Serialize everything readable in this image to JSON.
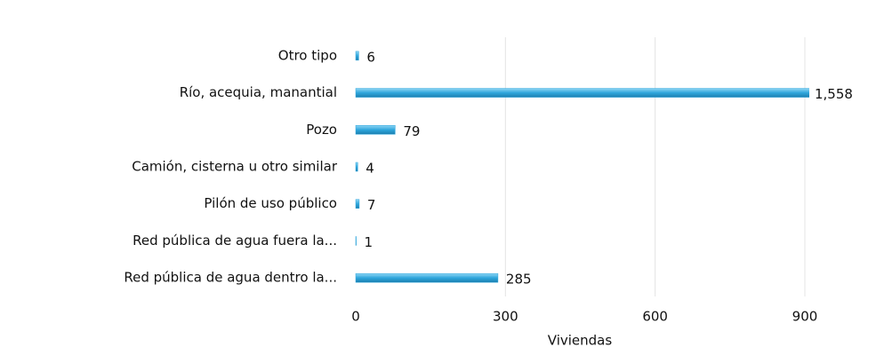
{
  "chart_data": {
    "type": "bar",
    "orientation": "horizontal",
    "categories": [
      "Otro tipo",
      "Río, acequia, manantial",
      "Pozo",
      "Camión, cisterna u otro similar",
      "Pilón de uso público",
      "Red pública de agua fuera la...",
      "Red pública de agua dentro la..."
    ],
    "values": [
      6,
      1558,
      79,
      4,
      7,
      1,
      285
    ],
    "value_labels": [
      "6",
      "1,558",
      "79",
      "4",
      "7",
      "1",
      "285"
    ],
    "color": "#2ea6dc",
    "xlabel": "Viviendas",
    "xlim": [
      0,
      900
    ],
    "xticks": [
      0,
      300,
      600,
      900
    ],
    "grid": true
  }
}
